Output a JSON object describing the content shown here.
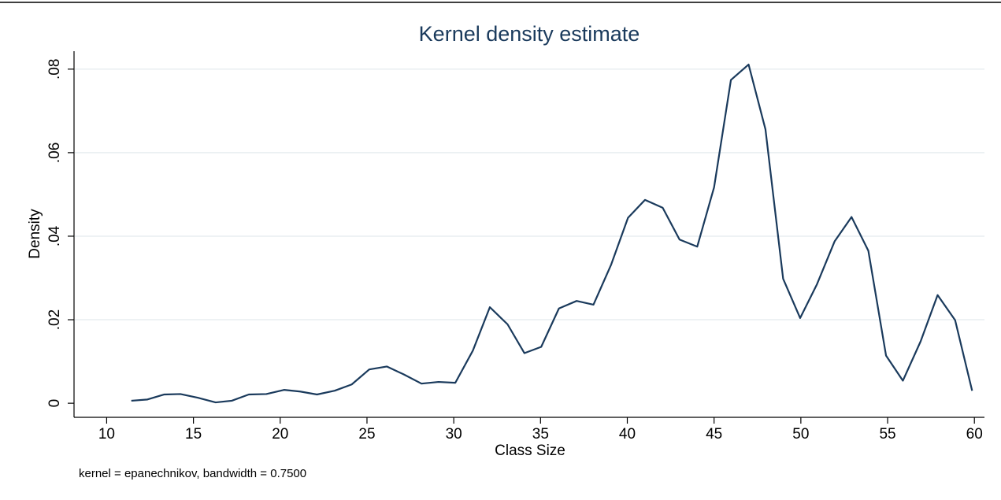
{
  "chart_data": {
    "type": "line",
    "title": "Kernel density estimate",
    "x_label": "Class Size",
    "y_label": "Density",
    "note": "kernel = epanechnikov, bandwidth = 0.7500",
    "color": "#1a3a5c",
    "grid": true,
    "x": [
      11.42,
      12.35,
      13.32,
      14.25,
      15.27,
      16.28,
      17.21,
      18.19,
      19.2,
      20.22,
      21.15,
      22.12,
      23.14,
      24.12,
      25.13,
      26.15,
      27.12,
      28.14,
      29.12,
      30.09,
      31.1,
      32.08,
      33.1,
      34.07,
      35.04,
      36.06,
      37.08,
      38.05,
      39.07,
      40.04,
      41.02,
      42.04,
      43.01,
      44.03,
      45.0,
      45.97,
      46.99,
      47.96,
      48.98,
      49.96,
      50.93,
      51.95,
      52.92,
      53.89,
      54.91,
      55.88,
      56.9,
      57.88,
      58.89,
      59.87
    ],
    "values": [
      0.0006,
      0.0009,
      0.0021,
      0.0022,
      0.0013,
      0.0002,
      0.0006,
      0.0021,
      0.0022,
      0.0032,
      0.0028,
      0.0021,
      0.003,
      0.0045,
      0.0081,
      0.0088,
      0.0069,
      0.0047,
      0.0051,
      0.0049,
      0.0126,
      0.023,
      0.0189,
      0.012,
      0.0135,
      0.0227,
      0.0245,
      0.0236,
      0.0332,
      0.0444,
      0.0487,
      0.0468,
      0.0392,
      0.0375,
      0.0517,
      0.0774,
      0.0811,
      0.0656,
      0.0298,
      0.0204,
      0.0285,
      0.0388,
      0.0446,
      0.0365,
      0.0114,
      0.0054,
      0.0148,
      0.0259,
      0.0199,
      0.003
    ],
    "xlim": [
      8.12,
      60.58
    ],
    "xticks": [
      10,
      15,
      20,
      25,
      30,
      35,
      40,
      45,
      50,
      55,
      60
    ],
    "ylim": [
      -0.00337,
      0.0843
    ],
    "yticks": [
      0,
      {
        "value": 0.02,
        "label": ".02"
      },
      {
        "value": 0.04,
        "label": ".04"
      },
      {
        "value": 0.06,
        "label": ".06"
      },
      {
        "value": 0.08,
        "label": ".08"
      }
    ]
  }
}
